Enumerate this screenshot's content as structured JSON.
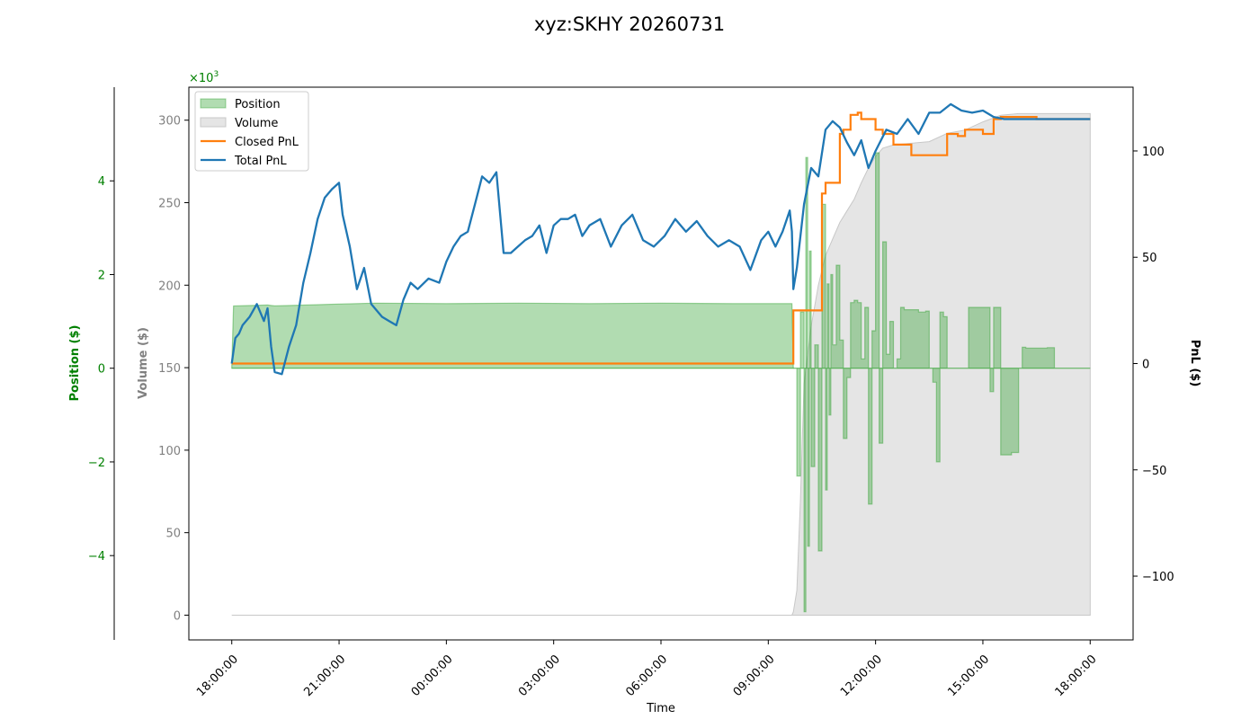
{
  "chart_data": {
    "type": "line",
    "title": "xyz:SKHY 20260731",
    "xlabel": "Time",
    "x_ticks": [
      "18:00:00",
      "21:00:00",
      "00:00:00",
      "03:00:00",
      "06:00:00",
      "09:00:00",
      "12:00:00",
      "15:00:00",
      "18:00:00"
    ],
    "xlim_hours": [
      -1.2,
      25.2
    ],
    "grid": false,
    "legend_placement": "upper-left",
    "axes": {
      "position": {
        "label": "Position ($)",
        "color": "#008000",
        "offset_multiplier": "×10^3",
        "ylim": [
          -5.8,
          6.0
        ],
        "ticks": [
          -4,
          -2,
          0,
          2,
          4
        ]
      },
      "volume": {
        "label": "Volume ($)",
        "color": "#808080",
        "ylim": [
          -15000,
          320000
        ],
        "ticks": [
          0,
          50,
          100,
          150,
          200,
          250,
          300
        ]
      },
      "pnl": {
        "label": "PnL ($)",
        "color": "#000000",
        "ylim": [
          -130,
          130
        ],
        "ticks": [
          -100,
          -50,
          0,
          50,
          100
        ]
      }
    },
    "colors": {
      "position_fill": "#2ca02c",
      "volume_fill": "#bfbfbf",
      "closed_pnl": "#ff7f0e",
      "total_pnl": "#1f77b4"
    },
    "legend": [
      "Position",
      "Volume",
      "Closed PnL",
      "Total PnL"
    ],
    "series": [
      {
        "name": "Position",
        "axis": "position",
        "style": "area",
        "x": [
          0,
          0.05,
          1.0,
          1.2,
          3.0,
          4.0,
          6.0,
          8.0,
          10.0,
          12.0,
          14.0,
          15.66,
          15.7
        ],
        "y": [
          0,
          1.33,
          1.35,
          1.33,
          1.37,
          1.39,
          1.38,
          1.39,
          1.38,
          1.39,
          1.38,
          1.38,
          0
        ]
      },
      {
        "name": "Position",
        "axis": "position",
        "style": "area-spiky",
        "x": [
          15.7,
          15.8,
          15.9,
          16.0,
          16.05,
          16.1,
          16.15,
          16.2,
          16.3,
          16.4,
          16.5,
          16.6,
          16.65,
          16.7,
          16.75,
          16.8,
          16.9,
          17.0,
          17.1,
          17.2,
          17.3,
          17.4,
          17.5,
          17.6,
          17.7,
          17.8,
          17.9,
          18.0,
          18.1,
          18.2,
          18.3,
          18.4,
          18.5,
          18.6,
          18.7,
          18.8,
          18.9,
          19.0,
          19.1,
          19.2,
          19.3,
          19.4,
          19.5,
          19.6,
          19.7,
          19.8,
          19.9,
          20.0,
          20.3,
          20.6,
          20.9,
          21.2,
          21.3,
          21.5,
          21.8,
          22.0,
          22.1,
          22.2,
          22.4,
          22.6,
          22.8,
          23.0,
          24.0
        ],
        "y": [
          0,
          -2.3,
          1.2,
          -5.2,
          4.5,
          -3.8,
          2.5,
          -2.1,
          0.5,
          -3.9,
          3.5,
          -2.6,
          1.8,
          -1.0,
          2.0,
          0.5,
          2.2,
          0.6,
          -1.5,
          -0.2,
          1.4,
          1.45,
          1.4,
          0.2,
          1.3,
          -2.9,
          0.8,
          4.6,
          -1.6,
          2.7,
          0.3,
          1.0,
          0.0,
          0.2,
          1.3,
          1.25,
          1.25,
          1.25,
          1.25,
          1.2,
          1.2,
          1.22,
          0.0,
          -0.3,
          -2.0,
          1.2,
          1.1,
          0.0,
          0.0,
          1.3,
          1.3,
          -0.5,
          1.3,
          -1.85,
          -1.8,
          0.0,
          0.45,
          0.43,
          0.43,
          0.43,
          0.44,
          0.0,
          0.0
        ]
      },
      {
        "name": "Volume",
        "axis": "volume",
        "style": "area",
        "x": [
          0,
          15.66,
          15.7,
          15.8,
          15.9,
          16.0,
          16.2,
          16.4,
          16.6,
          16.8,
          17.0,
          17.2,
          17.4,
          17.6,
          17.8,
          18.0,
          18.2,
          18.5,
          19.0,
          19.5,
          20.0,
          20.5,
          21.0,
          21.5,
          22.0,
          22.5,
          23.0,
          24.0
        ],
        "y": [
          0,
          0,
          2000,
          15000,
          70000,
          140000,
          175000,
          200000,
          218000,
          228000,
          238000,
          245000,
          252000,
          262000,
          271000,
          278000,
          283000,
          285000,
          286000,
          287000,
          292000,
          294000,
          299000,
          303000,
          304000,
          304000,
          304000,
          304000
        ]
      },
      {
        "name": "Closed PnL",
        "axis": "pnl",
        "style": "step",
        "x": [
          0,
          15.66,
          15.7,
          16.5,
          16.6,
          17.0,
          17.1,
          17.3,
          17.5,
          17.6,
          18.0,
          18.2,
          18.5,
          19.0,
          19.2,
          19.5,
          20.0,
          20.3,
          20.5,
          21.0,
          21.3,
          21.5,
          22.0,
          22.5,
          24.0
        ],
        "y": [
          0,
          0,
          25,
          80,
          85,
          108,
          110,
          117,
          118,
          115,
          110,
          108,
          103,
          98,
          98,
          98,
          108,
          107,
          110,
          108,
          115,
          116,
          116,
          115,
          115
        ]
      },
      {
        "name": "Total PnL",
        "axis": "pnl",
        "style": "line",
        "x": [
          0,
          0.1,
          0.2,
          0.3,
          0.5,
          0.7,
          0.9,
          1.0,
          1.1,
          1.2,
          1.4,
          1.6,
          1.8,
          2.0,
          2.2,
          2.4,
          2.6,
          2.8,
          3.0,
          3.1,
          3.3,
          3.5,
          3.7,
          3.9,
          4.2,
          4.4,
          4.6,
          4.8,
          5.0,
          5.2,
          5.5,
          5.8,
          6.0,
          6.2,
          6.4,
          6.6,
          6.8,
          7.0,
          7.2,
          7.4,
          7.6,
          7.8,
          8.0,
          8.2,
          8.4,
          8.6,
          8.8,
          9.0,
          9.2,
          9.4,
          9.6,
          9.8,
          10.0,
          10.3,
          10.6,
          10.9,
          11.2,
          11.5,
          11.8,
          12.1,
          12.4,
          12.7,
          13.0,
          13.3,
          13.6,
          13.9,
          14.2,
          14.5,
          14.8,
          15.0,
          15.2,
          15.4,
          15.6,
          15.66,
          15.7,
          15.8,
          16.0,
          16.2,
          16.4,
          16.6,
          16.8,
          17.0,
          17.2,
          17.4,
          17.6,
          17.8,
          18.0,
          18.3,
          18.6,
          18.9,
          19.2,
          19.5,
          19.8,
          20.1,
          20.4,
          20.7,
          21.0,
          21.3,
          21.6,
          22.0,
          22.5,
          23.0,
          24.0
        ],
        "y": [
          0,
          12,
          14,
          18,
          22,
          28,
          20,
          26,
          8,
          -4,
          -5,
          8,
          18,
          38,
          52,
          68,
          78,
          82,
          85,
          70,
          55,
          35,
          45,
          28,
          22,
          20,
          18,
          30,
          38,
          35,
          40,
          38,
          48,
          55,
          60,
          62,
          75,
          88,
          85,
          90,
          52,
          52,
          55,
          58,
          60,
          65,
          52,
          65,
          68,
          68,
          70,
          60,
          65,
          68,
          55,
          65,
          70,
          58,
          55,
          60,
          68,
          62,
          67,
          60,
          55,
          58,
          55,
          44,
          58,
          62,
          55,
          62,
          72,
          62,
          35,
          45,
          75,
          92,
          88,
          110,
          114,
          111,
          104,
          98,
          105,
          92,
          100,
          110,
          108,
          115,
          108,
          118,
          118,
          122,
          119,
          118,
          119,
          116,
          115,
          115,
          115,
          115,
          115
        ]
      }
    ]
  }
}
